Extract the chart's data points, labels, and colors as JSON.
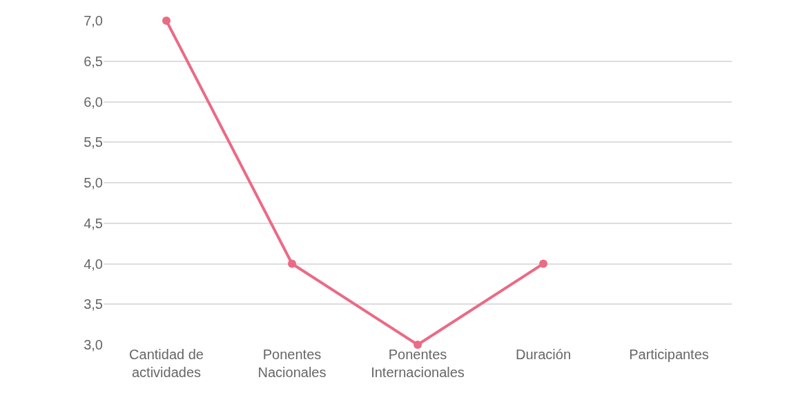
{
  "chart_data": {
    "type": "line",
    "categories": [
      "Cantidad de actividades",
      "Ponentes Nacionales",
      "Ponentes Internacionales",
      "Duración",
      "Participantes"
    ],
    "series": [
      {
        "color": "#eb6a85",
        "values": [
          7.0,
          4.0,
          3.0,
          4.0,
          null
        ]
      }
    ],
    "ylim": [
      3.0,
      7.0
    ],
    "yticks": [
      {
        "value": 3.0,
        "label": "3,0"
      },
      {
        "value": 3.5,
        "label": "3,5"
      },
      {
        "value": 4.0,
        "label": "4,0"
      },
      {
        "value": 4.5,
        "label": "4,5"
      },
      {
        "value": 5.0,
        "label": "5,0"
      },
      {
        "value": 5.5,
        "label": "5,5"
      },
      {
        "value": 6.0,
        "label": "6,0"
      },
      {
        "value": 6.5,
        "label": "6,5"
      },
      {
        "value": 7.0,
        "label": "7,0"
      }
    ],
    "grid": "y",
    "marker": "circle",
    "line_style": "solid"
  }
}
